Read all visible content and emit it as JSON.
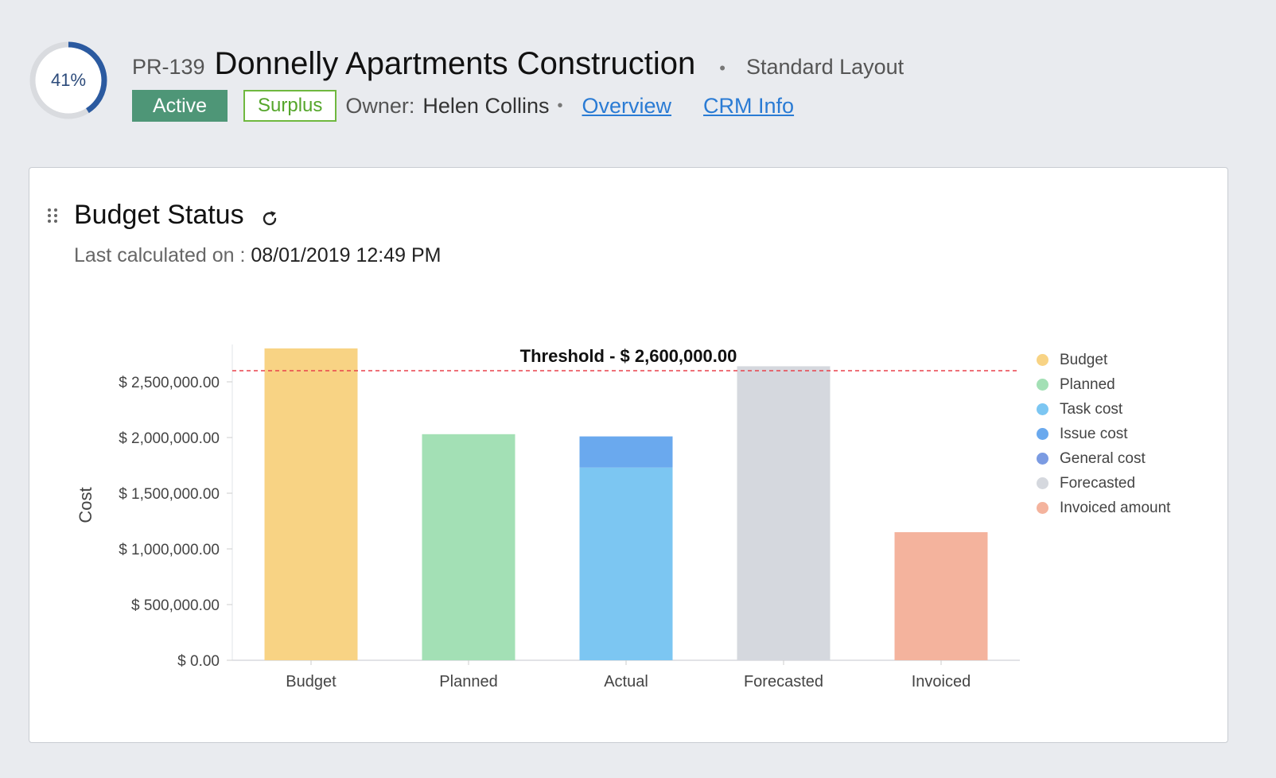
{
  "header": {
    "progress": {
      "value": 41,
      "label": "41%"
    },
    "project_id": "PR-139",
    "project_name": "Donnelly Apartments Construction",
    "separator": "•",
    "layout_name": "Standard Layout",
    "status_badge": "Active",
    "budget_badge": "Surplus",
    "owner_label": "Owner:",
    "owner_name": "Helen Collins",
    "owner_separator": "•",
    "links": {
      "overview": "Overview",
      "crm_info": "CRM Info"
    }
  },
  "widget": {
    "title": "Budget Status",
    "last_calculated_label": "Last calculated on :",
    "last_calculated_value": "08/01/2019 12:49 PM"
  },
  "colors": {
    "budget": "#f8d384",
    "planned": "#a3e0b5",
    "task_cost": "#7cc6f2",
    "issue_cost": "#6aa9ee",
    "general_cost": "#7b9be2",
    "forecasted": "#d5d8de",
    "invoiced_amount": "#f4b39d",
    "threshold": "#e8424b"
  },
  "chart_data": {
    "type": "bar",
    "ylabel": "Cost",
    "xlabel": "",
    "ylim": [
      0,
      2800000
    ],
    "yticks": [
      0,
      500000,
      1000000,
      1500000,
      2000000,
      2500000
    ],
    "ytick_labels": [
      "$ 0.00",
      "$ 500,000.00",
      "$ 1,000,000.00",
      "$ 1,500,000.00",
      "$ 2,000,000.00",
      "$ 2,500,000.00"
    ],
    "categories": [
      "Budget",
      "Planned",
      "Actual",
      "Forecasted",
      "Invoiced"
    ],
    "bars": [
      {
        "category": "Budget",
        "segments": [
          {
            "series": "Budget",
            "value": 2800000,
            "color_key": "budget"
          }
        ]
      },
      {
        "category": "Planned",
        "segments": [
          {
            "series": "Planned",
            "value": 2030000,
            "color_key": "planned"
          }
        ]
      },
      {
        "category": "Actual",
        "segments": [
          {
            "series": "Task cost",
            "value": 1730000,
            "color_key": "task_cost"
          },
          {
            "series": "Issue cost",
            "value": 280000,
            "color_key": "issue_cost"
          }
        ]
      },
      {
        "category": "Forecasted",
        "segments": [
          {
            "series": "Forecasted",
            "value": 2640000,
            "color_key": "forecasted"
          }
        ]
      },
      {
        "category": "Invoiced",
        "segments": [
          {
            "series": "Invoiced amount",
            "value": 1150000,
            "color_key": "invoiced_amount"
          }
        ]
      }
    ],
    "threshold": {
      "value": 2600000,
      "label": "Threshold - $ 2,600,000.00"
    },
    "legend": {
      "placement": "right",
      "items": [
        {
          "label": "Budget",
          "color_key": "budget"
        },
        {
          "label": "Planned",
          "color_key": "planned"
        },
        {
          "label": "Task cost",
          "color_key": "task_cost"
        },
        {
          "label": "Issue cost",
          "color_key": "issue_cost"
        },
        {
          "label": "General cost",
          "color_key": "general_cost"
        },
        {
          "label": "Forecasted",
          "color_key": "forecasted"
        },
        {
          "label": "Invoiced amount",
          "color_key": "invoiced_amount"
        }
      ]
    }
  }
}
